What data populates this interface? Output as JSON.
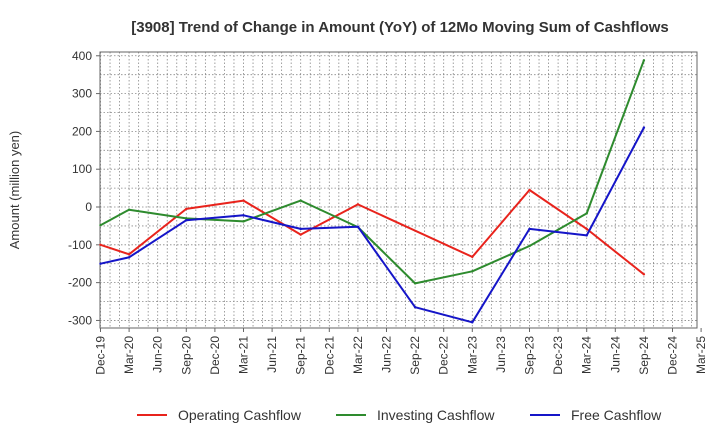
{
  "chart_data": {
    "type": "line",
    "title": "[3908]  Trend of Change in Amount (YoY) of 12Mo Moving Sum of Cashflows",
    "xlabel": "",
    "ylabel": "Amount (million yen)",
    "ylim": [
      -320,
      410
    ],
    "yticks": [
      400,
      300,
      200,
      100,
      0,
      -100,
      -200,
      -300
    ],
    "categories": [
      "Dec-19",
      "Mar-20",
      "Jun-20",
      "Sep-20",
      "Dec-20",
      "Mar-21",
      "Jun-21",
      "Sep-21",
      "Dec-21",
      "Mar-22",
      "Jun-22",
      "Sep-22",
      "Dec-22",
      "Mar-23",
      "Jun-23",
      "Sep-23",
      "Dec-23",
      "Mar-24",
      "Jun-24",
      "Sep-24",
      "Dec-24",
      "Mar-25"
    ],
    "grid": true,
    "legend_position": "bottom",
    "series": [
      {
        "name": "Operating Cashflow",
        "color": "#e8231c",
        "values": [
          -100,
          -125,
          null,
          -5,
          null,
          17,
          null,
          -73,
          null,
          7,
          null,
          null,
          null,
          -132,
          null,
          45,
          null,
          -58,
          null,
          -178,
          null,
          null
        ]
      },
      {
        "name": "Investing Cashflow",
        "color": "#2e8b2e",
        "values": [
          -48,
          -7,
          null,
          -30,
          null,
          -38,
          null,
          17,
          null,
          -53,
          null,
          -202,
          null,
          -170,
          null,
          -103,
          null,
          -17,
          null,
          388,
          null,
          null
        ]
      },
      {
        "name": "Free Cashflow",
        "color": "#1515c8",
        "values": [
          -150,
          -133,
          null,
          -35,
          null,
          -22,
          null,
          -58,
          null,
          -52,
          null,
          -265,
          null,
          -305,
          null,
          -58,
          null,
          -75,
          null,
          210,
          null,
          null
        ]
      }
    ]
  }
}
